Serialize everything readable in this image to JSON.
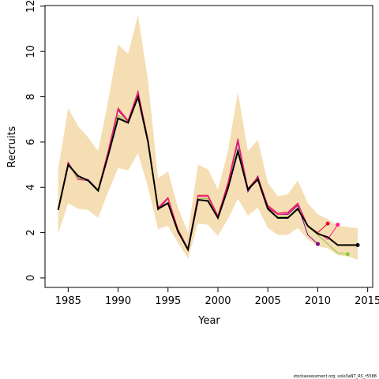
{
  "chart_data": {
    "type": "line",
    "x_label": "Year",
    "y_label": "Recruits",
    "source": "stockassessment.org, sole3aNT_RS_r5588",
    "x": [
      1984,
      1985,
      1986,
      1987,
      1988,
      1989,
      1990,
      1991,
      1992,
      1993,
      1994,
      1995,
      1996,
      1997,
      1998,
      1999,
      2000,
      2001,
      2002,
      2003,
      2004,
      2005,
      2006,
      2007,
      2008,
      2009,
      2010,
      2011,
      2012,
      2013,
      2014
    ],
    "band": {
      "color": "#f5deb3",
      "upper": [
        4.8,
        7.5,
        6.7,
        6.2,
        5.6,
        7.8,
        10.3,
        9.9,
        11.6,
        8.7,
        4.4,
        4.7,
        3.1,
        2.0,
        5.0,
        4.8,
        3.9,
        5.6,
        8.2,
        5.6,
        6.1,
        4.2,
        3.6,
        3.7,
        4.3,
        3.3,
        2.8,
        2.6,
        2.3,
        2.25,
        2.2
      ],
      "lower": [
        1.95,
        3.3,
        3.05,
        3.0,
        2.65,
        3.8,
        4.85,
        4.75,
        5.5,
        4.0,
        2.15,
        2.3,
        1.55,
        0.85,
        2.4,
        2.35,
        1.85,
        2.6,
        3.5,
        2.75,
        3.1,
        2.2,
        1.9,
        1.9,
        2.2,
        1.7,
        1.4,
        1.3,
        1.0,
        0.95,
        0.8
      ]
    },
    "series": [
      {
        "color": "#7a0a8c",
        "width": 1,
        "values": [
          3.05,
          5.1,
          4.4,
          4.35,
          3.9,
          5.5,
          7.4,
          6.9,
          8.2,
          6.1,
          3.0,
          3.5,
          2.1,
          1.3,
          3.6,
          3.6,
          2.7,
          4.1,
          6.0,
          3.8,
          4.5,
          3.1,
          2.8,
          2.8,
          3.2,
          1.9,
          1.5,
          null,
          null,
          null,
          null
        ]
      },
      {
        "color": "#e8003a",
        "width": 1,
        "values": [
          3.05,
          5.1,
          4.35,
          4.3,
          3.9,
          5.6,
          7.5,
          6.95,
          8.25,
          6.1,
          3.1,
          3.55,
          2.15,
          1.3,
          3.65,
          3.65,
          2.75,
          4.2,
          6.15,
          3.95,
          4.45,
          3.2,
          2.85,
          2.9,
          3.3,
          2.3,
          2.0,
          2.4,
          null,
          null,
          null
        ]
      },
      {
        "color": "#ff1a8c",
        "width": 1,
        "values": [
          3.0,
          5.05,
          4.35,
          4.3,
          3.9,
          5.55,
          7.45,
          6.9,
          8.2,
          6.05,
          3.05,
          3.5,
          2.1,
          1.3,
          3.6,
          3.6,
          2.7,
          4.1,
          6.1,
          3.9,
          4.4,
          3.15,
          2.8,
          2.85,
          3.25,
          2.3,
          2.0,
          1.7,
          2.35,
          null,
          null
        ]
      },
      {
        "color": "#8cc63f",
        "width": 1,
        "values": [
          3.0,
          5.0,
          4.4,
          4.3,
          3.9,
          5.4,
          7.2,
          6.85,
          8.05,
          6.0,
          3.05,
          3.35,
          2.05,
          1.25,
          3.5,
          3.5,
          2.65,
          3.95,
          5.7,
          3.9,
          4.35,
          3.05,
          2.7,
          2.7,
          3.1,
          2.25,
          1.9,
          1.5,
          1.1,
          1.05,
          null
        ]
      },
      {
        "color": "#000000",
        "width": 2,
        "values": [
          3.0,
          5.0,
          4.5,
          4.3,
          3.85,
          5.4,
          7.05,
          6.85,
          8.0,
          6.0,
          3.05,
          3.3,
          2.05,
          1.25,
          3.45,
          3.4,
          2.65,
          3.95,
          5.6,
          3.9,
          4.35,
          3.05,
          2.65,
          2.65,
          3.05,
          2.3,
          1.95,
          1.8,
          1.45,
          1.45,
          1.45
        ]
      }
    ],
    "xlim": [
      1982.68,
      2015.5
    ],
    "xticks": [
      1985,
      1990,
      1995,
      2000,
      2005,
      2010,
      2015
    ],
    "ylim": [
      -0.42,
      12.03
    ],
    "yticks": [
      0,
      2,
      4,
      6,
      8,
      10,
      12
    ]
  }
}
